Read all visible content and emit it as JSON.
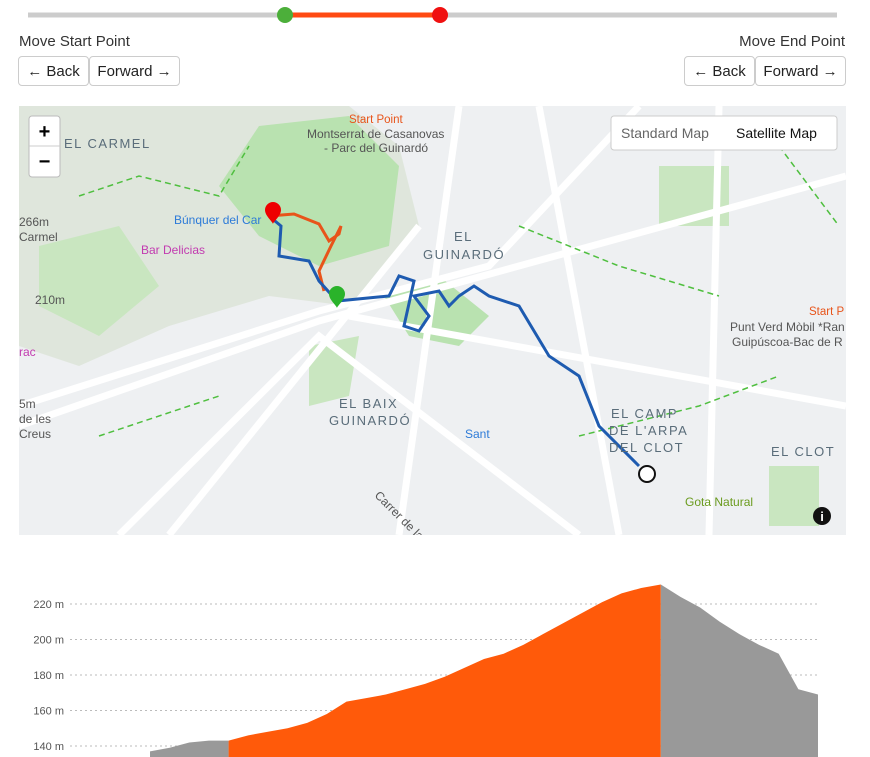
{
  "controls": {
    "start_label": "Move Start Point",
    "end_label": "Move End Point",
    "start_back": "← Back",
    "start_forward": "Forward →",
    "end_back": "← Back",
    "end_forward": "Forward →"
  },
  "map": {
    "zoom_in": "+",
    "zoom_out": "−",
    "standard": "Standard Map",
    "satellite": "Satellite Map",
    "labels": [
      "EL CARMEL",
      "Start Point",
      "Montserrat de Casanovas",
      "- Parc del Guinardó",
      "Búnquer del Car",
      "266m",
      "Carmel",
      "Bar Delicias",
      "210m",
      "EL",
      "GUINARDÓ",
      "Start P",
      "Punt Verd Mòbil *Ran",
      "Guipúscoa-Bac de R",
      "rac",
      "5m",
      "de les",
      "Creus",
      "EL BAIX",
      "GUINARDÓ",
      "Sant",
      "EL CAMP",
      "DE L'ARPA",
      "DEL CLOT",
      "EL CLOT",
      "Gota Natural",
      "Carrer de la",
      "i"
    ]
  },
  "elevation": {
    "type": "area",
    "ylim": [
      140,
      220
    ],
    "yticks": [
      {
        "value": 220,
        "label": "220 m"
      },
      {
        "value": 200,
        "label": "200 m"
      },
      {
        "value": 180,
        "label": "180 m"
      },
      {
        "value": 160,
        "label": "160 m"
      },
      {
        "value": 140,
        "label": "140 m"
      }
    ],
    "values": [
      137,
      139,
      142,
      143,
      143,
      146,
      148,
      150,
      153,
      158,
      165,
      167,
      169,
      172,
      175,
      179,
      184,
      189,
      192,
      197,
      203,
      209,
      215,
      221,
      226,
      229,
      231,
      224,
      218,
      210,
      203,
      197,
      192,
      172,
      169
    ],
    "selected_range": [
      4,
      26
    ],
    "selected_color": "#ff5a0a",
    "color": "#999999",
    "grid": true
  }
}
